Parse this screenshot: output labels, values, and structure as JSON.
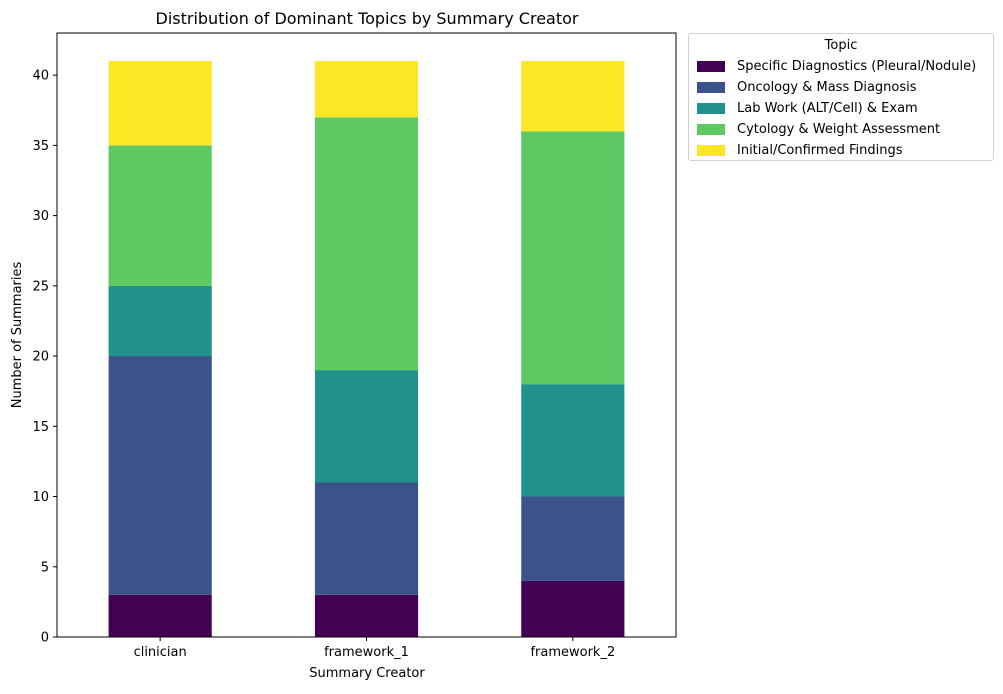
{
  "chart_data": {
    "type": "bar",
    "stacked": true,
    "title": "Distribution of Dominant Topics by Summary Creator",
    "xlabel": "Summary Creator",
    "ylabel": "Number of Summaries",
    "categories": [
      "clinician",
      "framework_1",
      "framework_2"
    ],
    "ylim": [
      0,
      43
    ],
    "yticks": [
      0,
      5,
      10,
      15,
      20,
      25,
      30,
      35,
      40
    ],
    "grid": false,
    "legend": {
      "title": "Topic",
      "placement": "outside-top-right"
    },
    "series": [
      {
        "name": "Specific Diagnostics (Pleural/Nodule)",
        "color": "#440154",
        "values": [
          3,
          3,
          4
        ]
      },
      {
        "name": "Oncology & Mass Diagnosis",
        "color": "#3b528b",
        "values": [
          17,
          8,
          6
        ]
      },
      {
        "name": "Lab Work (ALT/Cell) & Exam",
        "color": "#21918c",
        "values": [
          5,
          8,
          8
        ]
      },
      {
        "name": "Cytology & Weight Assessment",
        "color": "#5ec962",
        "values": [
          10,
          18,
          18
        ]
      },
      {
        "name": "Initial/Confirmed Findings",
        "color": "#fde725",
        "values": [
          6,
          4,
          5
        ]
      }
    ]
  }
}
